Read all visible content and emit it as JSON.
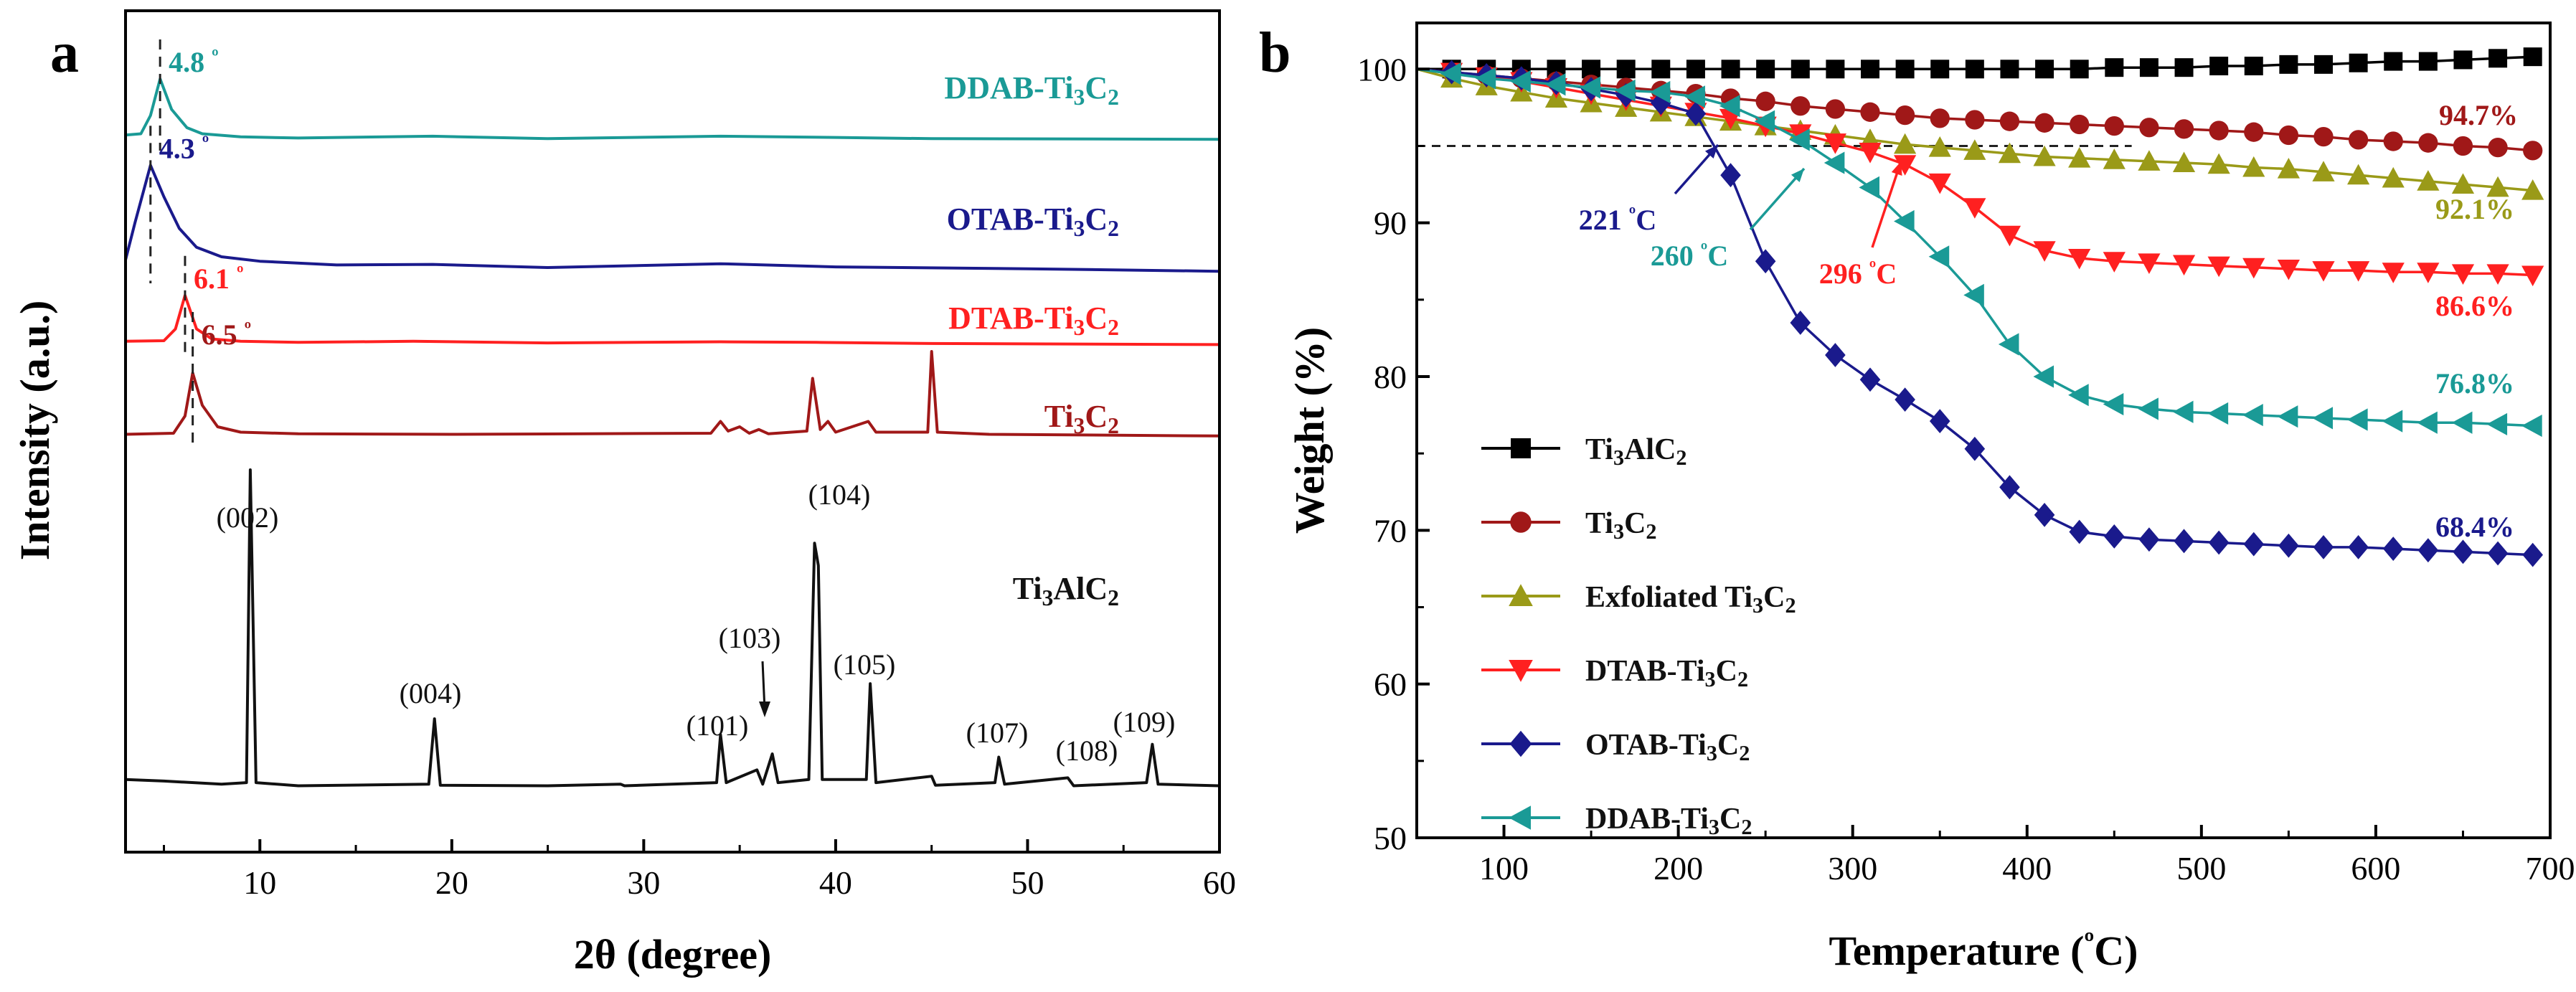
{
  "chart_data": [
    {
      "panel": "a",
      "type": "line",
      "xlabel": "2θ (degree)",
      "ylabel": "Intensity (a.u.)",
      "xlim": [
        3,
        60
      ],
      "xticks": [
        "10",
        "20",
        "30",
        "40",
        "50",
        "60"
      ],
      "yticks": "none",
      "grid": false,
      "series": [
        {
          "name": "DDAB-Ti3C2",
          "color": "#1a9a96",
          "peak_annotations": [
            {
              "x": 4.8,
              "text": "4.8 º"
            }
          ],
          "points": [
            [
              3,
              0.8
            ],
            [
              3.8,
              1
            ],
            [
              4.3,
              4
            ],
            [
              4.8,
              10
            ],
            [
              5.4,
              5
            ],
            [
              6.2,
              2
            ],
            [
              7,
              1
            ],
            [
              9,
              0.5
            ],
            [
              12,
              0.3
            ],
            [
              19,
              0.6
            ],
            [
              25,
              0.2
            ],
            [
              34,
              0.6
            ],
            [
              40,
              0.4
            ],
            [
              45,
              0.2
            ],
            [
              60,
              0.1
            ]
          ]
        },
        {
          "name": "OTAB-Ti3C2",
          "color": "#1a1a8c",
          "peak_annotations": [
            {
              "x": 4.3,
              "text": "4.3 º"
            }
          ],
          "points": [
            [
              3,
              2
            ],
            [
              3.5,
              8
            ],
            [
              4.3,
              17
            ],
            [
              5,
              12
            ],
            [
              5.8,
              7
            ],
            [
              6.7,
              4
            ],
            [
              8,
              2.5
            ],
            [
              10,
              1.8
            ],
            [
              14,
              1.2
            ],
            [
              19,
              1.3
            ],
            [
              25,
              0.8
            ],
            [
              34,
              1.4
            ],
            [
              40,
              0.9
            ],
            [
              50,
              0.6
            ],
            [
              60,
              0.2
            ]
          ]
        },
        {
          "name": "DTAB-Ti3C2",
          "color": "#ff2020",
          "peak_annotations": [
            {
              "x": 6.1,
              "text": "6.1 º"
            }
          ],
          "points": [
            [
              3,
              0.8
            ],
            [
              5,
              0.9
            ],
            [
              5.6,
              3
            ],
            [
              6.1,
              9
            ],
            [
              6.7,
              3
            ],
            [
              7.5,
              1.2
            ],
            [
              9,
              0.8
            ],
            [
              12,
              0.6
            ],
            [
              18,
              0.8
            ],
            [
              25,
              0.5
            ],
            [
              34,
              0.7
            ],
            [
              39,
              0.6
            ],
            [
              45,
              0.4
            ],
            [
              60,
              0.2
            ]
          ]
        },
        {
          "name": "Ti3C2",
          "color": "#a01818",
          "peak_annotations": [
            {
              "x": 6.5,
              "text": "6.5 º"
            }
          ],
          "points": [
            [
              3,
              0.6
            ],
            [
              5.5,
              0.8
            ],
            [
              6.1,
              4
            ],
            [
              6.5,
              12
            ],
            [
              7,
              6
            ],
            [
              7.8,
              2
            ],
            [
              9,
              1
            ],
            [
              12,
              0.7
            ],
            [
              20,
              0.6
            ],
            [
              33.5,
              0.8
            ],
            [
              34,
              3
            ],
            [
              34.4,
              1.2
            ],
            [
              35,
              2
            ],
            [
              35.5,
              0.8
            ],
            [
              36,
              1.5
            ],
            [
              36.5,
              0.7
            ],
            [
              38.5,
              1.2
            ],
            [
              38.8,
              11
            ],
            [
              39.2,
              1.5
            ],
            [
              39.6,
              3
            ],
            [
              40,
              1
            ],
            [
              41.7,
              3
            ],
            [
              42.1,
              1
            ],
            [
              44.8,
              1
            ],
            [
              45,
              16
            ],
            [
              45.3,
              1
            ],
            [
              48,
              0.6
            ],
            [
              60,
              0.3
            ]
          ]
        },
        {
          "name": "Ti3AlC2",
          "color": "#111111",
          "points": [
            [
              3,
              3
            ],
            [
              5,
              2.5
            ],
            [
              8,
              1.5
            ],
            [
              9.3,
              2
            ],
            [
              9.5,
              100
            ],
            [
              9.8,
              2
            ],
            [
              12,
              1
            ],
            [
              18.8,
              1.5
            ],
            [
              19.1,
              22
            ],
            [
              19.4,
              1.2
            ],
            [
              25,
              1
            ],
            [
              28.8,
              1.5
            ],
            [
              29,
              1
            ],
            [
              33.8,
              2
            ],
            [
              34,
              17
            ],
            [
              34.3,
              2
            ],
            [
              35.9,
              6
            ],
            [
              36.2,
              1.5
            ],
            [
              36.7,
              11
            ],
            [
              37,
              2
            ],
            [
              38.6,
              3
            ],
            [
              38.9,
              77
            ],
            [
              39.1,
              70
            ],
            [
              39.3,
              3
            ],
            [
              41.6,
              3
            ],
            [
              41.8,
              33
            ],
            [
              42.1,
              2
            ],
            [
              45,
              4
            ],
            [
              45.2,
              1.2
            ],
            [
              48.3,
              2
            ],
            [
              48.5,
              10
            ],
            [
              48.8,
              1.5
            ],
            [
              52.1,
              3.5
            ],
            [
              52.4,
              1
            ],
            [
              56.2,
              2
            ],
            [
              56.5,
              14
            ],
            [
              56.8,
              1.5
            ],
            [
              60,
              1
            ]
          ]
        }
      ],
      "peak_labels": [
        "(002)",
        "(004)",
        "(101)",
        "(103)",
        "(104)",
        "(105)",
        "(107)",
        "(108)",
        "(109)"
      ]
    },
    {
      "panel": "b",
      "type": "line",
      "xlabel": "Temperature (ºC)",
      "ylabel": "Weight (%)",
      "xlim": [
        50,
        700
      ],
      "ylim": [
        50,
        103
      ],
      "xticks": [
        100,
        200,
        300,
        400,
        500,
        600,
        700
      ],
      "yticks": [
        50,
        60,
        70,
        80,
        90,
        100
      ],
      "grid": false,
      "legend": "bottom-left",
      "reference_line_y": 95,
      "series": [
        {
          "name": "Ti3AlC2",
          "color": "#000000",
          "marker": "square",
          "x": [
            50,
            70,
            90,
            110,
            130,
            150,
            170,
            190,
            210,
            230,
            250,
            270,
            290,
            310,
            330,
            350,
            370,
            390,
            410,
            430,
            450,
            470,
            490,
            510,
            530,
            550,
            570,
            590,
            610,
            630,
            650,
            670,
            690
          ],
          "y": [
            100,
            100,
            100,
            100,
            100,
            100,
            100,
            100,
            100,
            100,
            100,
            100,
            100,
            100,
            100,
            100,
            100,
            100,
            100,
            100,
            100.1,
            100.1,
            100.1,
            100.2,
            100.2,
            100.3,
            100.3,
            100.4,
            100.5,
            100.5,
            100.6,
            100.7,
            100.8
          ]
        },
        {
          "name": "Ti3C2",
          "color": "#a01818",
          "marker": "circle",
          "x": [
            50,
            70,
            90,
            110,
            130,
            150,
            170,
            190,
            210,
            230,
            250,
            270,
            290,
            310,
            330,
            350,
            370,
            390,
            410,
            430,
            450,
            470,
            490,
            510,
            530,
            550,
            570,
            590,
            610,
            630,
            650,
            670,
            690
          ],
          "y": [
            100,
            99.8,
            99.6,
            99.4,
            99.2,
            99,
            98.8,
            98.6,
            98.4,
            98.1,
            97.9,
            97.6,
            97.4,
            97.2,
            97,
            96.8,
            96.7,
            96.6,
            96.5,
            96.4,
            96.3,
            96.2,
            96.1,
            96,
            95.9,
            95.7,
            95.6,
            95.4,
            95.3,
            95.2,
            95,
            94.9,
            94.7
          ]
        },
        {
          "name": "Exfoliated Ti3C2",
          "color": "#9a9a18",
          "marker": "triangle-up",
          "x": [
            50,
            70,
            90,
            110,
            130,
            150,
            170,
            190,
            210,
            230,
            250,
            270,
            290,
            310,
            330,
            350,
            370,
            390,
            410,
            430,
            450,
            470,
            490,
            510,
            530,
            550,
            570,
            590,
            610,
            630,
            650,
            670,
            690
          ],
          "y": [
            100,
            99.4,
            98.9,
            98.5,
            98.1,
            97.8,
            97.5,
            97.2,
            96.9,
            96.6,
            96.3,
            96,
            95.7,
            95.4,
            95.1,
            94.9,
            94.7,
            94.5,
            94.3,
            94.2,
            94.1,
            94,
            93.9,
            93.8,
            93.6,
            93.5,
            93.3,
            93.1,
            92.9,
            92.7,
            92.5,
            92.3,
            92.1
          ]
        },
        {
          "name": "DTAB-Ti3C2",
          "color": "#ff2020",
          "marker": "triangle-down",
          "x": [
            50,
            70,
            90,
            110,
            130,
            150,
            170,
            190,
            210,
            230,
            250,
            270,
            290,
            310,
            330,
            350,
            370,
            390,
            410,
            430,
            450,
            470,
            490,
            510,
            530,
            550,
            570,
            590,
            610,
            630,
            650,
            670,
            690
          ],
          "y": [
            100,
            99.8,
            99.5,
            99.2,
            98.8,
            98.4,
            98,
            97.6,
            97.2,
            96.8,
            96.3,
            95.8,
            95.2,
            94.6,
            93.8,
            92.6,
            91,
            89.2,
            88.2,
            87.7,
            87.5,
            87.4,
            87.3,
            87.2,
            87.1,
            87,
            86.9,
            86.9,
            86.8,
            86.8,
            86.7,
            86.7,
            86.6
          ]
        },
        {
          "name": "OTAB-Ti3C2",
          "color": "#1a1a8c",
          "marker": "diamond",
          "x": [
            50,
            70,
            90,
            110,
            130,
            150,
            170,
            190,
            210,
            230,
            250,
            270,
            290,
            310,
            330,
            350,
            370,
            390,
            410,
            430,
            450,
            470,
            490,
            510,
            530,
            550,
            570,
            590,
            610,
            630,
            650,
            670,
            690
          ],
          "y": [
            100,
            99.8,
            99.6,
            99.4,
            99.1,
            98.7,
            98.3,
            97.8,
            97.1,
            93.1,
            87.5,
            83.5,
            81.4,
            79.8,
            78.5,
            77.1,
            75.3,
            72.8,
            71,
            69.9,
            69.6,
            69.4,
            69.3,
            69.2,
            69.1,
            69,
            68.9,
            68.9,
            68.8,
            68.7,
            68.6,
            68.5,
            68.4
          ]
        },
        {
          "name": "DDAB-Ti3C2",
          "color": "#1a9a96",
          "marker": "triangle-left",
          "x": [
            50,
            70,
            90,
            110,
            130,
            150,
            170,
            190,
            210,
            230,
            250,
            270,
            290,
            310,
            330,
            350,
            370,
            390,
            410,
            430,
            450,
            470,
            490,
            510,
            530,
            550,
            570,
            590,
            610,
            630,
            650,
            670,
            690
          ],
          "y": [
            100,
            99.7,
            99.4,
            99.2,
            99,
            98.8,
            98.6,
            98.5,
            98.2,
            97.6,
            96.6,
            95.4,
            93.9,
            92.3,
            90.1,
            87.8,
            85.3,
            82.1,
            80,
            78.8,
            78.2,
            77.9,
            77.7,
            77.6,
            77.5,
            77.4,
            77.3,
            77.2,
            77.1,
            77,
            77,
            76.9,
            76.8
          ]
        }
      ],
      "end_labels": [
        {
          "series": "Ti3C2",
          "text": "94.7%"
        },
        {
          "series": "Exfoliated Ti3C2",
          "text": "92.1%"
        },
        {
          "series": "DTAB-Ti3C2",
          "text": "86.6%"
        },
        {
          "series": "DDAB-Ti3C2",
          "text": "76.8%"
        },
        {
          "series": "OTAB-Ti3C2",
          "text": "68.4%"
        }
      ],
      "temperature_annotations": [
        {
          "series": "OTAB-Ti3C2",
          "text": "221 ºC",
          "x": 221
        },
        {
          "series": "DDAB-Ti3C2",
          "text": "260 ºC",
          "x": 260
        },
        {
          "series": "DTAB-Ti3C2",
          "text": "296 ºC",
          "x": 296
        }
      ]
    }
  ]
}
